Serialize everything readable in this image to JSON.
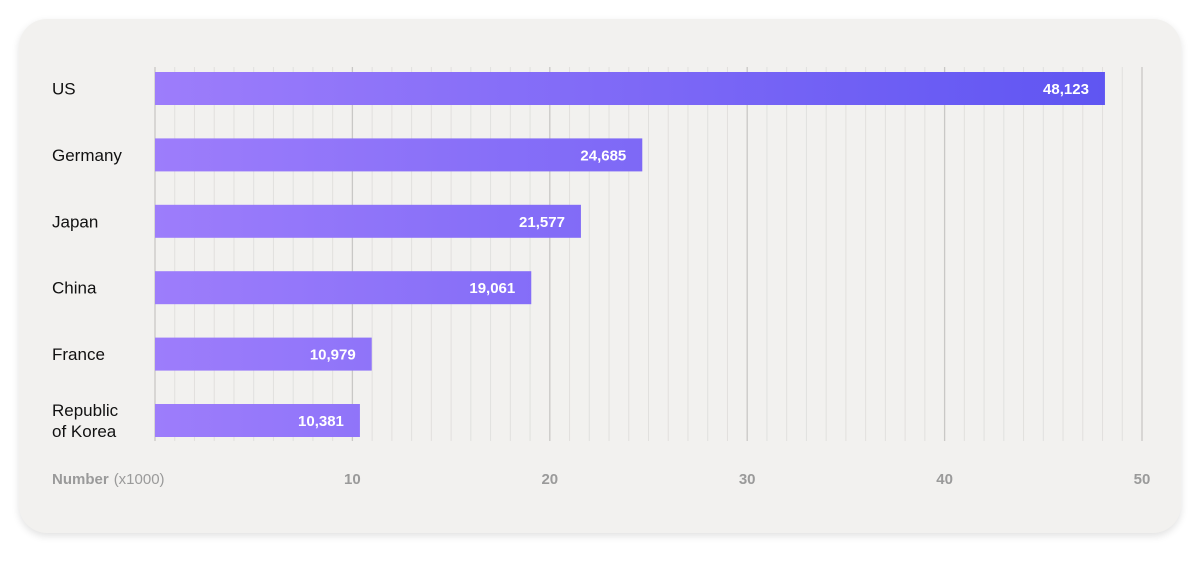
{
  "chart_data": {
    "type": "bar",
    "orientation": "horizontal",
    "categories": [
      "US",
      "Germany",
      "Japan",
      "China",
      "France",
      "Republic of Korea"
    ],
    "category_lines": [
      [
        "US"
      ],
      [
        "Germany"
      ],
      [
        "Japan"
      ],
      [
        "China"
      ],
      [
        "France"
      ],
      [
        "Republic",
        "of Korea"
      ]
    ],
    "values": [
      48.123,
      24.685,
      21.577,
      19.061,
      10.979,
      10.381
    ],
    "value_labels": [
      "48,123",
      "24,685",
      "21,577",
      "19,061",
      "10,979",
      "10,381"
    ],
    "xlabel": "Number",
    "xlabel_unit": "(x1000)",
    "xlim": [
      0,
      50
    ],
    "xticks": [
      10,
      20,
      30,
      40,
      50
    ],
    "xtick_labels": [
      "10",
      "20",
      "30",
      "40",
      "50"
    ],
    "minor_tick_step": 1,
    "grid": true,
    "colors": {
      "bar_start": "#9d7dfb",
      "bar_end": "#5f55f2",
      "grid_major": "#c9c8c6",
      "grid_minor": "#e1e0de",
      "card_background": "#f2f1ef"
    }
  }
}
